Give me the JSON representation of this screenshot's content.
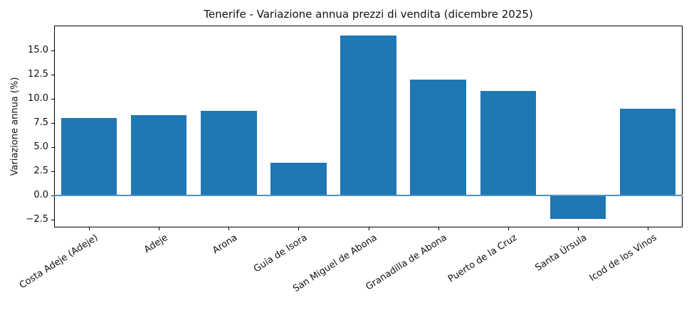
{
  "chart_data": {
    "type": "bar",
    "title": "Tenerife - Variazione annua prezzi di vendita (dicembre 2025)",
    "xlabel": "",
    "ylabel": "Variazione annua (%)",
    "categories": [
      "Costa Adeje (Adeje)",
      "Adeje",
      "Arona",
      "Guía de Isora",
      "San Miguel de Abona",
      "Granadilla de Abona",
      "Puerto de la Cruz",
      "Santa Úrsula",
      "Icod de los Vinos"
    ],
    "values": [
      8.0,
      8.3,
      8.8,
      3.4,
      16.6,
      12.0,
      10.8,
      -2.4,
      9.0
    ],
    "yticks": [
      -2.5,
      0.0,
      2.5,
      5.0,
      7.5,
      10.0,
      12.5,
      15.0
    ],
    "ytick_labels": [
      "−2.5",
      "0.0",
      "2.5",
      "5.0",
      "7.5",
      "10.0",
      "12.5",
      "15.0"
    ],
    "ylim": [
      -3.3,
      17.6
    ],
    "grid": false,
    "legend_position": "none",
    "bar_color": "#1f77b4",
    "zero_line_color": "#4d94c7",
    "bar_width_fraction": 0.8,
    "x_tick_rotation_deg": 33
  }
}
